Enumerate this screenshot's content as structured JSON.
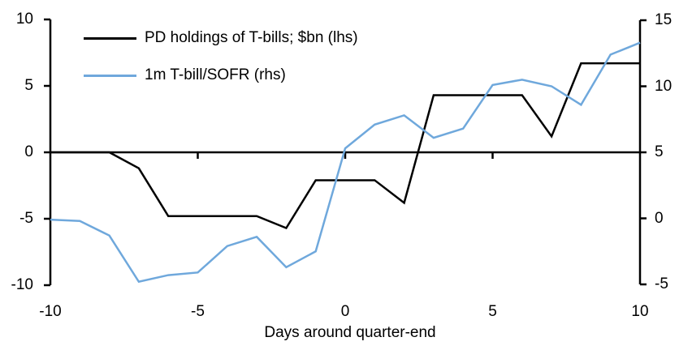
{
  "chart_data": {
    "type": "line",
    "title": "",
    "xlabel": "Days around quarter-end",
    "grid": false,
    "legend_position": "top-left",
    "x": [
      -10,
      -9,
      -8,
      -7,
      -6,
      -5,
      -4,
      -3,
      -2,
      -1,
      0,
      1,
      2,
      3,
      4,
      5,
      6,
      7,
      8,
      9,
      10
    ],
    "series": [
      {
        "name": "PD holdings of T-bills; $bn (lhs)",
        "axis": "left",
        "color": "#000000",
        "values": [
          0,
          0,
          0,
          -1.2,
          -4.8,
          -4.8,
          -4.8,
          -4.8,
          -5.7,
          -2.1,
          -2.1,
          -2.1,
          -3.8,
          4.3,
          4.3,
          4.3,
          4.3,
          1.2,
          6.7,
          6.7,
          6.7
        ]
      },
      {
        "name": "1m T-bill/SOFR (rhs)",
        "axis": "right",
        "color": "#6fa8dc",
        "values": [
          -0.1,
          -0.2,
          -1.3,
          -4.8,
          -4.3,
          -4.1,
          -2.1,
          -1.4,
          -3.7,
          -2.5,
          5.3,
          7.1,
          7.8,
          6.1,
          6.8,
          10.1,
          10.5,
          10.0,
          8.6,
          12.4,
          13.3
        ]
      }
    ],
    "axes": {
      "left": {
        "range": [
          -10,
          10
        ],
        "ticks": [
          10,
          5,
          0,
          -5,
          -10
        ]
      },
      "right": {
        "range": [
          -5,
          15
        ],
        "ticks": [
          15,
          10,
          5,
          0,
          -5
        ]
      },
      "x": {
        "range": [
          -10,
          10
        ],
        "ticks": [
          -10,
          -5,
          0,
          5,
          10
        ],
        "zero_line": true
      }
    }
  }
}
